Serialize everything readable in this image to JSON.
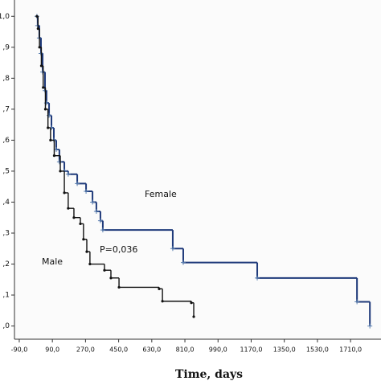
{
  "chart_data": {
    "type": "step",
    "x_label": "Time, days",
    "annotations": [
      "Female",
      "Male",
      "P=0,036"
    ],
    "xlim": [
      -116,
      1823
    ],
    "ylim": [
      -0.04,
      1.05
    ],
    "xticks": [
      {
        "value": -90,
        "label": "-90,0"
      },
      {
        "value": 90,
        "label": "90,0"
      },
      {
        "value": 270,
        "label": "270,0"
      },
      {
        "value": 450,
        "label": "450,0"
      },
      {
        "value": 630,
        "label": "630,0"
      },
      {
        "value": 810,
        "label": "810,0"
      },
      {
        "value": 990,
        "label": "990,0"
      },
      {
        "value": 1170,
        "label": "1170,0"
      },
      {
        "value": 1350,
        "label": "1350,0"
      },
      {
        "value": 1530,
        "label": "1530,0"
      },
      {
        "value": 1710,
        "label": "1710,0"
      }
    ],
    "yticks": [
      {
        "value": 0,
        "label": ",0"
      },
      {
        "value": 0.1,
        "label": ",1"
      },
      {
        "value": 0.2,
        "label": ",2"
      },
      {
        "value": 0.3,
        "label": ",3"
      },
      {
        "value": 0.4,
        "label": ",4"
      },
      {
        "value": 0.5,
        "label": ",5"
      },
      {
        "value": 0.6,
        "label": ",6"
      },
      {
        "value": 0.7,
        "label": ",7"
      },
      {
        "value": 0.8,
        "label": ",8"
      },
      {
        "value": 0.9,
        "label": ",9"
      },
      {
        "value": 1,
        "label": "1,0"
      }
    ],
    "series": [
      {
        "color": "#1f3a7a",
        "marker": "plus",
        "x": [
          6,
          10,
          19,
          28,
          37,
          50,
          58,
          72,
          85,
          98,
          111,
          128,
          155,
          176,
          225,
          273,
          308,
          329,
          351,
          364,
          744,
          801,
          1203,
          1745,
          1815
        ],
        "values": [
          1.0,
          0.97,
          0.93,
          0.88,
          0.82,
          0.76,
          0.72,
          0.68,
          0.64,
          0.6,
          0.57,
          0.53,
          0.5,
          0.49,
          0.46,
          0.435,
          0.4,
          0.37,
          0.34,
          0.31,
          0.25,
          0.205,
          0.155,
          0.078,
          0
        ]
      },
      {
        "color": "#111111",
        "marker": "dot",
        "x": [
          6,
          12,
          20,
          30,
          40,
          52,
          66,
          80,
          100,
          133,
          155,
          176,
          207,
          242,
          259,
          277,
          294,
          373,
          408,
          452,
          670,
          688,
          845,
          858
        ],
        "values": [
          1.0,
          0.96,
          0.9,
          0.84,
          0.77,
          0.7,
          0.64,
          0.6,
          0.55,
          0.5,
          0.43,
          0.38,
          0.35,
          0.33,
          0.28,
          0.24,
          0.2,
          0.18,
          0.155,
          0.125,
          0.12,
          0.08,
          0.075,
          0.03
        ]
      }
    ]
  }
}
